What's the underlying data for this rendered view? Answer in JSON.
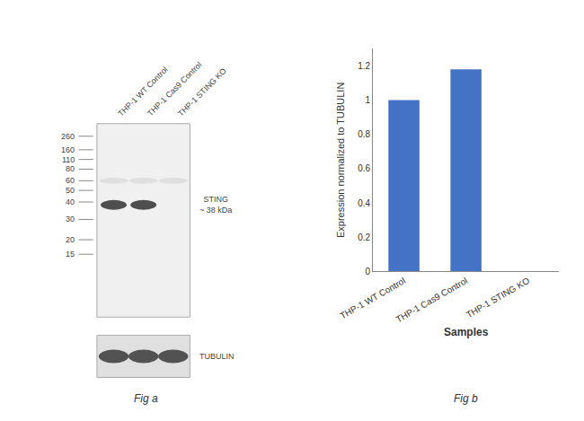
{
  "chart_data": {
    "type": "bar",
    "categories": [
      "THP-1 WT Control",
      "THP-1 Cas9 Control",
      "THP-1 STING KO"
    ],
    "values": [
      1.0,
      1.18,
      0.0
    ],
    "color": "#4472c4",
    "xlabel": "Samples",
    "ylabel": "Expression normalized to TUBULIN",
    "ylim": [
      0,
      1.3
    ],
    "yticks": [
      0,
      0.2,
      0.4,
      0.6,
      0.8,
      1.0,
      1.2
    ],
    "grid": false,
    "annotations": [
      "Fig a",
      "Fig b",
      "STING\n~ 38 kDa",
      "TUBULIN",
      "260",
      "160",
      "110",
      "80",
      "60",
      "50",
      "40",
      "30",
      "20",
      "15"
    ]
  }
}
